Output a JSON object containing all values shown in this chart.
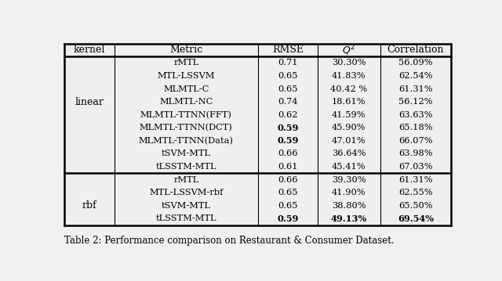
{
  "caption": "Table 2: Performance comparison on Restaurant & Consumer Dataset.",
  "header": [
    "kernel",
    "Metric",
    "RMSE",
    "Q²",
    "Correlation"
  ],
  "linear_rows": [
    [
      "rMTL",
      "0.71",
      "30.30%",
      "56.09%",
      false,
      false,
      false
    ],
    [
      "MTL-LSSVM",
      "0.65",
      "41.83%",
      "62.54%",
      false,
      false,
      false
    ],
    [
      "MLMTL-C",
      "0.65",
      "40.42 %",
      "61.31%",
      false,
      false,
      false
    ],
    [
      "MLMTL-NC",
      "0.74",
      "18.61%",
      "56.12%",
      false,
      false,
      false
    ],
    [
      "MLMTL-TTNN(FFT)",
      "0.62",
      "41.59%",
      "63.63%",
      false,
      false,
      false
    ],
    [
      "MLMTL-TTNN(DCT)",
      "0.59",
      "45.90%",
      "65.18%",
      true,
      false,
      false
    ],
    [
      "MLMTL-TTNN(Data)",
      "0.59",
      "47.01%",
      "66.07%",
      true,
      false,
      false
    ],
    [
      "tSVM-MTL",
      "0.66",
      "36.64%",
      "63.98%",
      false,
      false,
      false
    ],
    [
      "tLSSTM-MTL",
      "0.61",
      "45.41%",
      "67.03%",
      false,
      false,
      false
    ]
  ],
  "rbf_rows": [
    [
      "rMTL",
      "0.66",
      "39.30%",
      "61.31%",
      false,
      false,
      false
    ],
    [
      "MTL-LSSVM-rbf",
      "0.65",
      "41.90%",
      "62.55%",
      false,
      false,
      false
    ],
    [
      "tSVM-MTL",
      "0.65",
      "38.80%",
      "65.50%",
      false,
      false,
      false
    ],
    [
      "tLSSTM-MTL",
      "0.59",
      "49.13%",
      "69.54%",
      true,
      true,
      true
    ]
  ],
  "linear_label_row": 3,
  "rbf_label_row": 2,
  "bg_color": "#e8e8e8",
  "table_bg": "#f2f2f2"
}
